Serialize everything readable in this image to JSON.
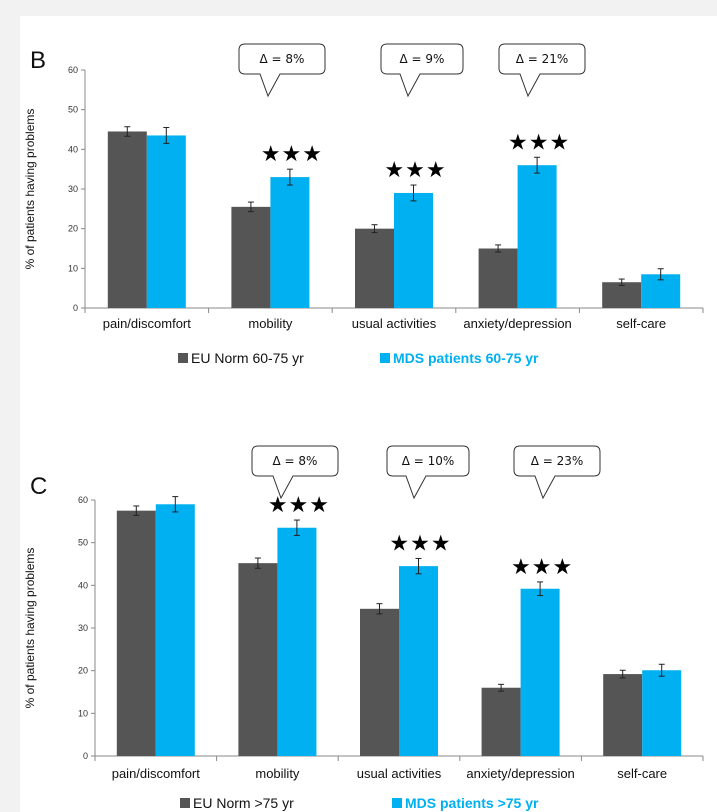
{
  "chart_data": [
    {
      "type": "bar",
      "panel_label": "B",
      "categories": [
        "pain/discomfort",
        "mobility",
        "usual activities",
        "anxiety/depression",
        "self-care"
      ],
      "series": [
        {
          "name": "EU Norm 60-75 yr",
          "values": [
            44.5,
            25.5,
            20,
            15,
            6.5
          ],
          "errors": [
            1.2,
            1.2,
            1.0,
            0.9,
            0.8
          ],
          "color": "#555555"
        },
        {
          "name": "MDS patients 60-75 yr",
          "values": [
            43.5,
            33,
            29,
            36,
            8.5
          ],
          "errors": [
            2.0,
            2.0,
            2.0,
            2.0,
            1.4
          ],
          "color": "#00B0F0"
        }
      ],
      "ylabel": "% of patients having problems",
      "ylim": [
        0,
        60
      ],
      "yticks": [
        0,
        10,
        20,
        30,
        40,
        50,
        60
      ],
      "grid": false,
      "legend": "bottom",
      "annotations": [
        {
          "category": "mobility",
          "text": "Δ = 8%",
          "stars": "★★★"
        },
        {
          "category": "usual activities",
          "text": "Δ = 9%",
          "stars": "★★★"
        },
        {
          "category": "anxiety/depression",
          "text": "Δ = 21%",
          "stars": "★★★"
        }
      ]
    },
    {
      "type": "bar",
      "panel_label": "C",
      "categories": [
        "pain/discomfort",
        "mobility",
        "usual activities",
        "anxiety/depression",
        "self-care"
      ],
      "series": [
        {
          "name": "EU Norm >75 yr",
          "values": [
            57.5,
            45.2,
            34.5,
            16,
            19.2
          ],
          "errors": [
            1.1,
            1.2,
            1.2,
            0.8,
            0.9
          ],
          "color": "#555555"
        },
        {
          "name": "MDS patients >75 yr",
          "values": [
            59,
            53.5,
            44.5,
            39.2,
            20.1
          ],
          "errors": [
            1.8,
            1.8,
            1.8,
            1.6,
            1.4
          ],
          "color": "#00B0F0"
        }
      ],
      "ylabel": "% of patients having problems",
      "ylim": [
        0,
        60
      ],
      "yticks": [
        0,
        10,
        20,
        30,
        40,
        50,
        60
      ],
      "grid": false,
      "legend": "bottom",
      "annotations": [
        {
          "category": "mobility",
          "text": "Δ = 8%",
          "stars": "★★★"
        },
        {
          "category": "usual activities",
          "text": "Δ = 10%",
          "stars": "★★★"
        },
        {
          "category": "anxiety/depression",
          "text": "Δ = 23%",
          "stars": "★★★"
        }
      ]
    }
  ]
}
